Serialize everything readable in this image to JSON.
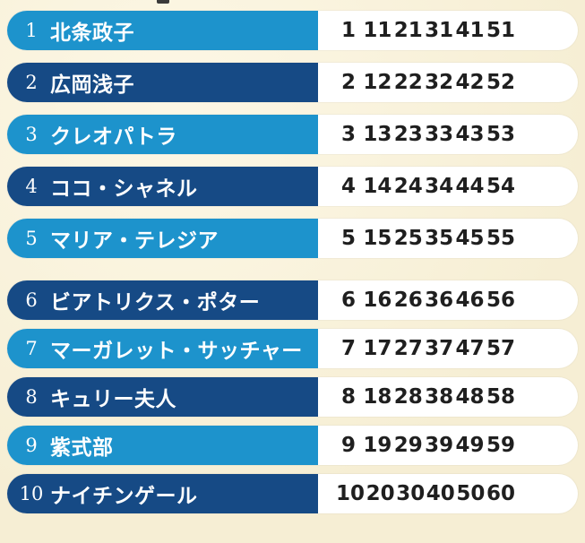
{
  "colors": {
    "page_bg": "#fbf3d8",
    "light_blue": "#1d93cc",
    "dark_blue": "#164a85",
    "number_text": "#1f1f1f"
  },
  "rows": [
    {
      "rank": "1",
      "name": "北条政子",
      "numbers": [
        "1",
        "11",
        "21",
        "31",
        "41",
        "51"
      ]
    },
    {
      "rank": "2",
      "name": "広岡浅子",
      "numbers": [
        "2",
        "12",
        "22",
        "32",
        "42",
        "52"
      ]
    },
    {
      "rank": "3",
      "name": "クレオパトラ",
      "numbers": [
        "3",
        "13",
        "23",
        "33",
        "43",
        "53"
      ]
    },
    {
      "rank": "4",
      "name": "ココ・シャネル",
      "numbers": [
        "4",
        "14",
        "24",
        "34",
        "44",
        "54"
      ]
    },
    {
      "rank": "5",
      "name": "マリア・テレジア",
      "numbers": [
        "5",
        "15",
        "25",
        "35",
        "45",
        "55"
      ]
    },
    {
      "rank": "6",
      "name": "ビアトリクス・ポター",
      "numbers": [
        "6",
        "16",
        "26",
        "36",
        "46",
        "56"
      ]
    },
    {
      "rank": "7",
      "name": "マーガレット・サッチャー",
      "numbers": [
        "7",
        "17",
        "27",
        "37",
        "47",
        "57"
      ]
    },
    {
      "rank": "8",
      "name": "キュリー夫人",
      "numbers": [
        "8",
        "18",
        "28",
        "38",
        "48",
        "58"
      ]
    },
    {
      "rank": "9",
      "name": "紫式部",
      "numbers": [
        "9",
        "19",
        "29",
        "39",
        "49",
        "59"
      ]
    },
    {
      "rank": "10",
      "name": "ナイチンゲール",
      "numbers": [
        "10",
        "20",
        "30",
        "40",
        "50",
        "60"
      ]
    }
  ]
}
